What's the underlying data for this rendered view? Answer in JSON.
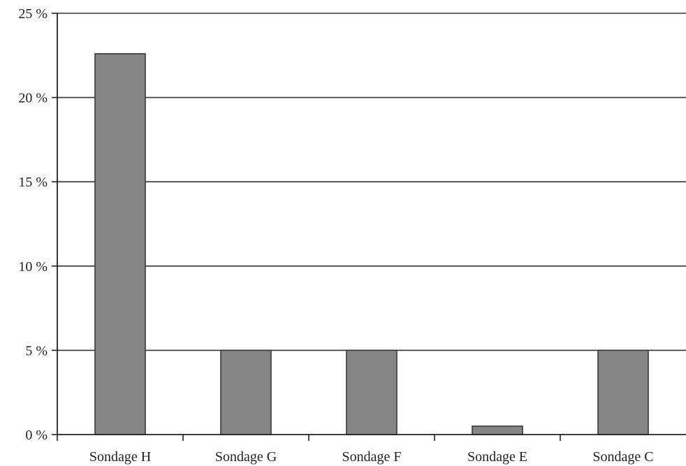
{
  "chart_data": {
    "type": "bar",
    "title": "",
    "xlabel": "",
    "ylabel": "",
    "categories": [
      "Sondage H",
      "Sondage G",
      "Sondage F",
      "Sondage E",
      "Sondage C"
    ],
    "values": [
      22.6,
      5.0,
      5.0,
      0.5,
      5.0
    ],
    "ylim": [
      0,
      25
    ],
    "y_ticks": [
      0,
      5,
      10,
      15,
      20,
      25
    ],
    "y_tick_labels": [
      "0 %",
      "5 %",
      "10 %",
      "15 %",
      "20 %",
      "25 %"
    ],
    "grid": true,
    "legend": "none",
    "colors": {
      "bar_fill": "#858585",
      "bar_stroke": "#3a3a3a",
      "grid": "#333333",
      "axis": "#222222",
      "text": "#222222"
    }
  }
}
